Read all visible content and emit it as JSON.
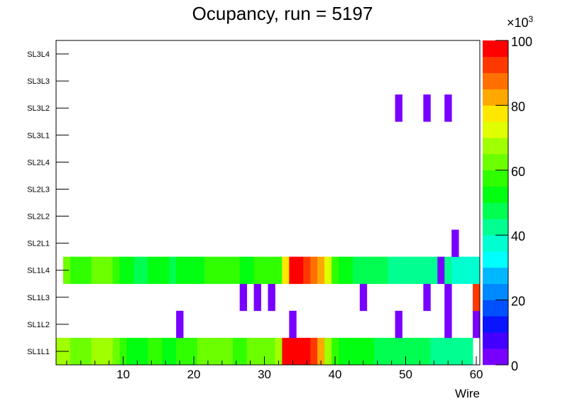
{
  "chart_data": {
    "type": "heatmap",
    "title": "Ocupancy, run = 5197",
    "xlabel": "Wire",
    "ylabel": "",
    "xlim": [
      0.5,
      60.5
    ],
    "x_ticks": [
      "10",
      "20",
      "30",
      "40",
      "50",
      "60"
    ],
    "x_tick_values": [
      10,
      20,
      30,
      40,
      50,
      60
    ],
    "y_categories": [
      "SL1L1",
      "SL1L2",
      "SL1L3",
      "SL1L4",
      "SL2L1",
      "SL2L2",
      "SL2L3",
      "SL2L4",
      "SL3L1",
      "SL3L2",
      "SL3L3",
      "SL3L4"
    ],
    "z_unit_label": "×10",
    "z_unit_exponent": "3",
    "zlim": [
      0,
      100
    ],
    "z_ticks": [
      "0",
      "20",
      "40",
      "60",
      "80",
      "100"
    ],
    "z_tick_values": [
      0,
      20,
      40,
      60,
      80,
      100
    ],
    "palette": [
      "#7800ff",
      "#4400ff",
      "#0a14ff",
      "#0050ff",
      "#0088ff",
      "#00b8ff",
      "#00ffff",
      "#00ffd0",
      "#00ff90",
      "#00ff50",
      "#00ff10",
      "#30ff00",
      "#6cff00",
      "#a0ff00",
      "#e0ff00",
      "#ffe800",
      "#ffa800",
      "#ff7000",
      "#ff3800",
      "#ff0000"
    ],
    "rows": [
      {
        "name": "SL1L1",
        "values": [
          67.5,
          67.5,
          62.5,
          62.5,
          62.5,
          67.5,
          67.5,
          67.5,
          62.5,
          57.5,
          52.5,
          52.5,
          52.5,
          57.5,
          57.5,
          52.5,
          52.5,
          57.5,
          57.5,
          57.5,
          62.5,
          62.5,
          62.5,
          62.5,
          62.5,
          57.5,
          57.5,
          62.5,
          62.5,
          62.5,
          62.5,
          67.5,
          97.5,
          97.5,
          97.5,
          97.5,
          92.5,
          82.5,
          67.5,
          57.5,
          52.5,
          52.5,
          52.5,
          52.5,
          52.5,
          47.5,
          47.5,
          47.5,
          47.5,
          47.5,
          47.5,
          47.5,
          47.5,
          42.5,
          42.5,
          42.5,
          42.5,
          42.5,
          42.5,
          null
        ]
      },
      {
        "name": "SL1L2",
        "cells": [
          [
            18,
            2.5
          ],
          [
            34,
            2.5
          ],
          [
            49,
            2.5
          ],
          [
            56,
            2.5
          ],
          [
            60,
            2.5
          ]
        ]
      },
      {
        "name": "SL1L3",
        "cells": [
          [
            27,
            2.5
          ],
          [
            29,
            2.5
          ],
          [
            31,
            2.5
          ],
          [
            44,
            2.5
          ],
          [
            53,
            2.5
          ],
          [
            56,
            2.5
          ],
          [
            60,
            92.5
          ]
        ]
      },
      {
        "name": "SL1L4",
        "values": [
          null,
          62.5,
          57.5,
          57.5,
          57.5,
          62.5,
          62.5,
          62.5,
          57.5,
          52.5,
          52.5,
          47.5,
          47.5,
          52.5,
          52.5,
          52.5,
          47.5,
          52.5,
          52.5,
          52.5,
          52.5,
          57.5,
          57.5,
          57.5,
          57.5,
          57.5,
          52.5,
          52.5,
          57.5,
          57.5,
          57.5,
          57.5,
          77.5,
          97.5,
          97.5,
          92.5,
          87.5,
          82.5,
          72.5,
          57.5,
          52.5,
          52.5,
          47.5,
          47.5,
          47.5,
          47.5,
          47.5,
          42.5,
          42.5,
          42.5,
          42.5,
          42.5,
          42.5,
          42.5,
          2.5,
          42.5,
          37.5,
          37.5,
          37.5,
          37.5
        ]
      },
      {
        "name": "SL2L1",
        "cells": [
          [
            57,
            2.5
          ]
        ]
      },
      {
        "name": "SL2L2",
        "cells": []
      },
      {
        "name": "SL2L3",
        "cells": []
      },
      {
        "name": "SL2L4",
        "cells": []
      },
      {
        "name": "SL3L1",
        "cells": []
      },
      {
        "name": "SL3L2",
        "cells": [
          [
            49,
            2.5
          ],
          [
            53,
            2.5
          ],
          [
            56,
            2.5
          ]
        ]
      },
      {
        "name": "SL3L3",
        "cells": []
      },
      {
        "name": "SL3L4",
        "cells": []
      }
    ]
  }
}
